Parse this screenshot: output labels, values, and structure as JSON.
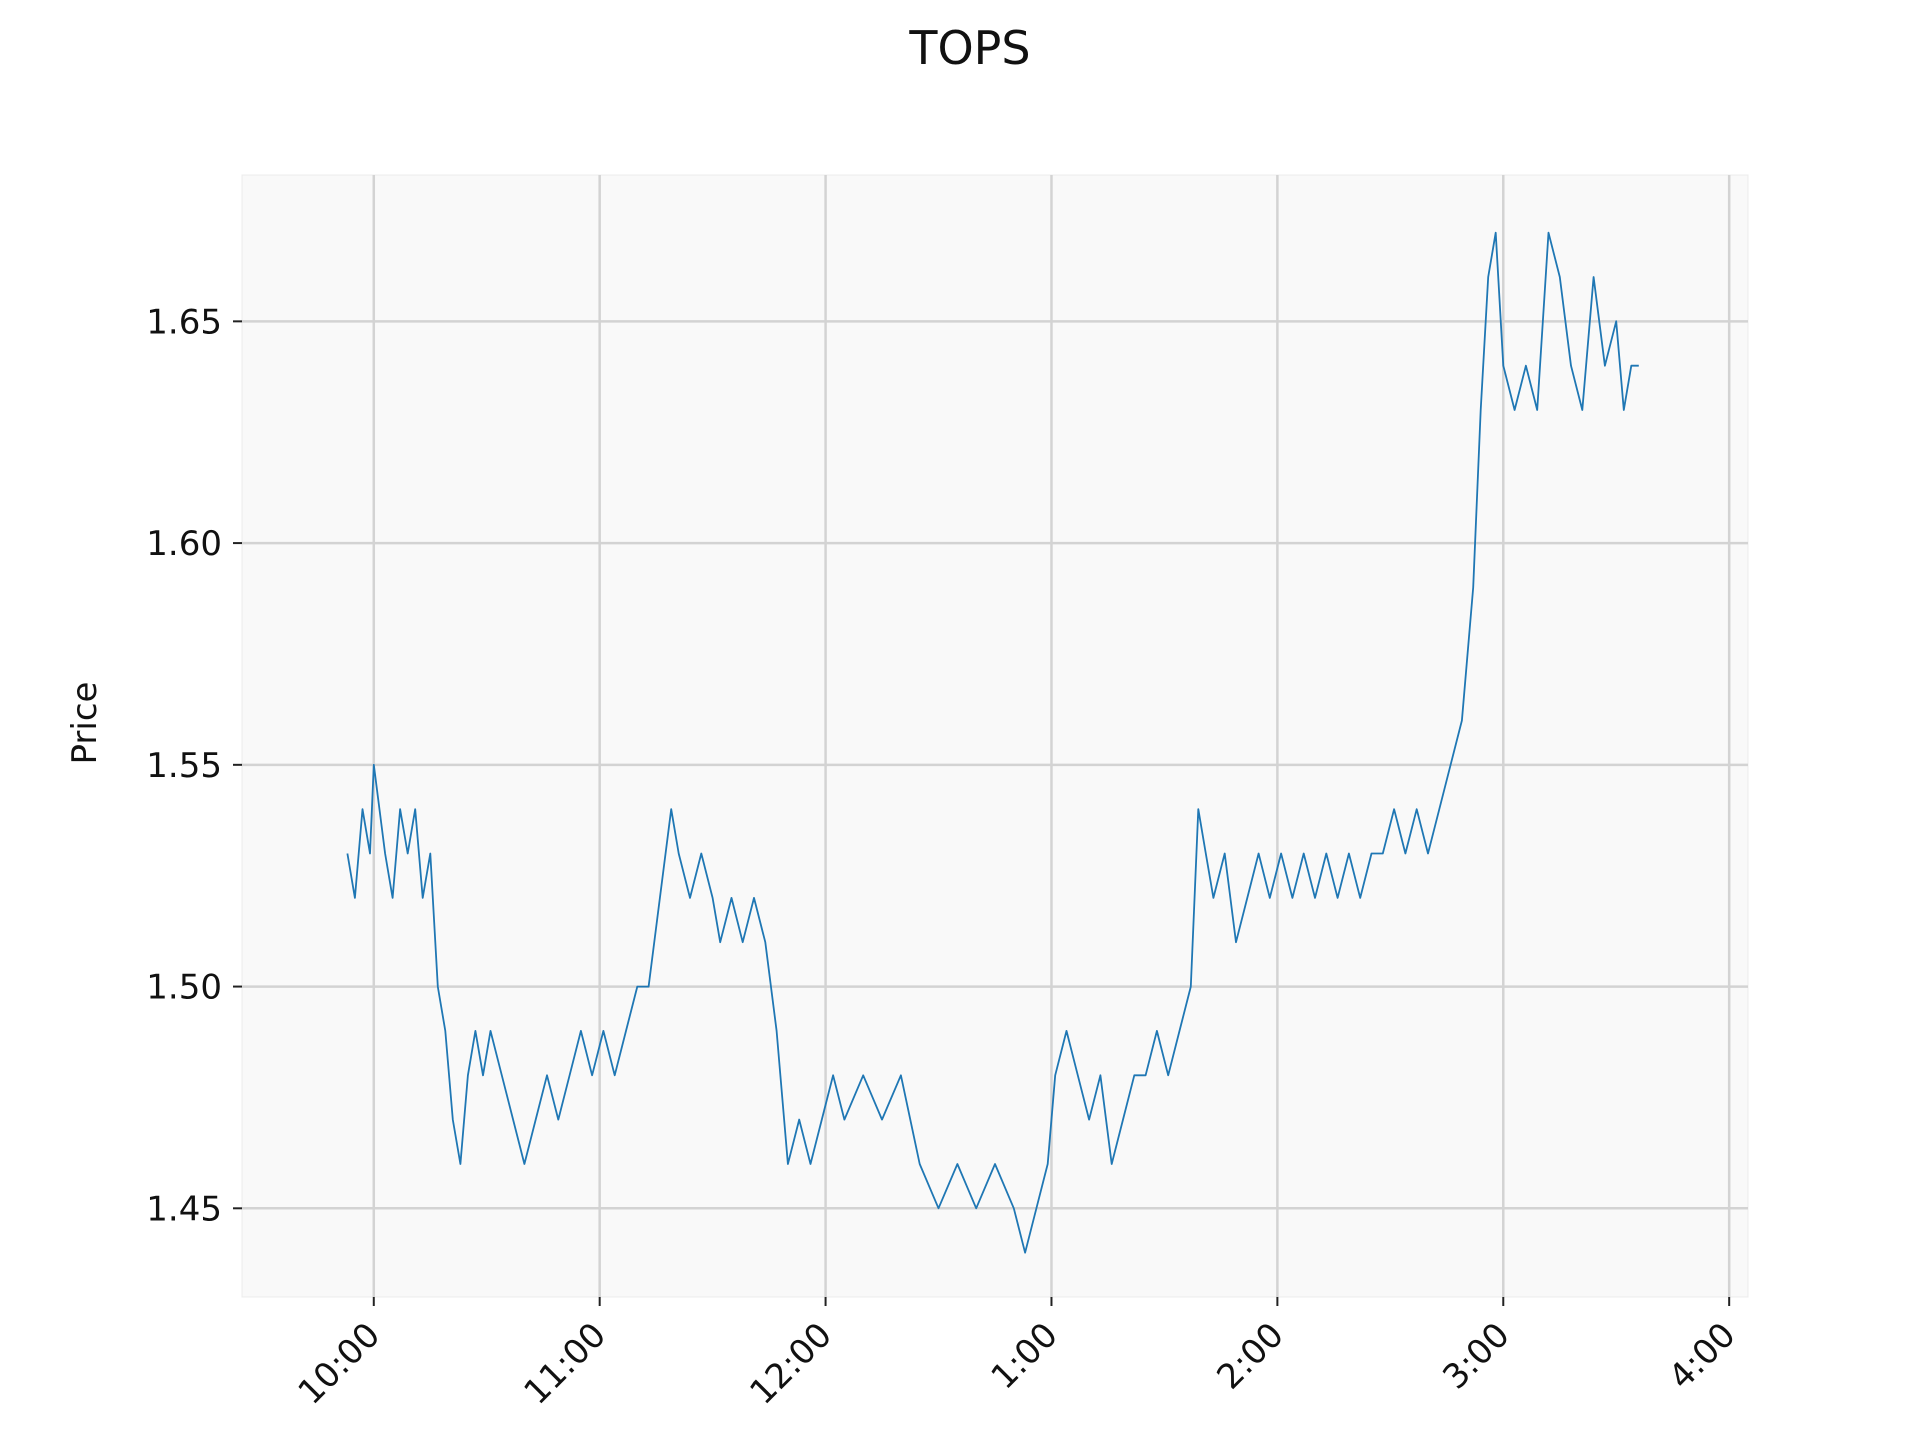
{
  "chart_data": {
    "type": "line",
    "title": "TOPS",
    "xlabel": "",
    "ylabel": "Price",
    "x_ticks": [
      "10:00",
      "11:00",
      "12:00",
      "1:00",
      "2:00",
      "3:00",
      "4:00"
    ],
    "y_ticks": [
      1.45,
      1.5,
      1.55,
      1.6,
      1.65
    ],
    "y_tick_labels": [
      "1.45",
      "1.50",
      "1.55",
      "1.60",
      "1.65"
    ],
    "xlim": [
      "9:25",
      "4:05"
    ],
    "ylim": [
      1.43,
      1.683
    ],
    "grid": true,
    "colors": {
      "line": "#1f77b4",
      "plot_bg": "#f9f9f9",
      "grid": "#d3d3d3"
    },
    "series": [
      {
        "x": [
          "9:53",
          "9:55",
          "9:57",
          "9:59",
          "10:00",
          "10:03",
          "10:05",
          "10:07",
          "10:09",
          "10:11",
          "10:13",
          "10:15",
          "10:17",
          "10:19",
          "10:21",
          "10:23",
          "10:25",
          "10:27",
          "10:29",
          "10:31",
          "10:34",
          "10:37",
          "10:40",
          "10:43",
          "10:46",
          "10:49",
          "10:52",
          "10:55",
          "10:58",
          "11:01",
          "11:04",
          "11:07",
          "11:10",
          "11:13",
          "11:16",
          "11:19",
          "11:21",
          "11:24",
          "11:27",
          "11:30",
          "11:32",
          "11:35",
          "11:38",
          "11:41",
          "11:44",
          "11:47",
          "11:50",
          "11:53",
          "11:56",
          "11:59",
          "12:02",
          "12:05",
          "12:10",
          "12:15",
          "12:20",
          "12:25",
          "12:30",
          "12:35",
          "12:40",
          "12:45",
          "12:50",
          "12:53",
          "12:56",
          "12:59",
          "1:01",
          "1:04",
          "1:07",
          "1:10",
          "1:13",
          "1:16",
          "1:19",
          "1:22",
          "1:25",
          "1:28",
          "1:31",
          "1:34",
          "1:37",
          "1:39",
          "1:41",
          "1:43",
          "1:46",
          "1:49",
          "1:52",
          "1:55",
          "1:58",
          "2:01",
          "2:04",
          "2:07",
          "2:10",
          "2:13",
          "2:16",
          "2:19",
          "2:22",
          "2:25",
          "2:28",
          "2:31",
          "2:34",
          "2:37",
          "2:40",
          "2:43",
          "2:46",
          "2:49",
          "2:52",
          "2:54",
          "2:56",
          "2:58",
          "3:00",
          "3:03",
          "3:06",
          "3:09",
          "3:12",
          "3:15",
          "3:18",
          "3:21",
          "3:24",
          "3:27",
          "3:30",
          "3:32",
          "3:34",
          "3:36"
        ],
        "y": [
          1.53,
          1.52,
          1.54,
          1.53,
          1.55,
          1.53,
          1.52,
          1.54,
          1.53,
          1.54,
          1.52,
          1.53,
          1.5,
          1.49,
          1.47,
          1.46,
          1.48,
          1.49,
          1.48,
          1.49,
          1.48,
          1.47,
          1.46,
          1.47,
          1.48,
          1.47,
          1.48,
          1.49,
          1.48,
          1.49,
          1.48,
          1.49,
          1.5,
          1.5,
          1.52,
          1.54,
          1.53,
          1.52,
          1.53,
          1.52,
          1.51,
          1.52,
          1.51,
          1.52,
          1.51,
          1.49,
          1.46,
          1.47,
          1.46,
          1.47,
          1.48,
          1.47,
          1.48,
          1.47,
          1.48,
          1.46,
          1.45,
          1.46,
          1.45,
          1.46,
          1.45,
          1.44,
          1.45,
          1.46,
          1.48,
          1.49,
          1.48,
          1.47,
          1.48,
          1.46,
          1.47,
          1.48,
          1.48,
          1.49,
          1.48,
          1.49,
          1.5,
          1.54,
          1.53,
          1.52,
          1.53,
          1.51,
          1.52,
          1.53,
          1.52,
          1.53,
          1.52,
          1.53,
          1.52,
          1.53,
          1.52,
          1.53,
          1.52,
          1.53,
          1.53,
          1.54,
          1.53,
          1.54,
          1.53,
          1.54,
          1.55,
          1.56,
          1.59,
          1.63,
          1.66,
          1.67,
          1.64,
          1.63,
          1.64,
          1.63,
          1.67,
          1.66,
          1.64,
          1.63,
          1.66,
          1.64,
          1.65,
          1.63,
          1.64,
          1.64
        ]
      }
    ]
  }
}
